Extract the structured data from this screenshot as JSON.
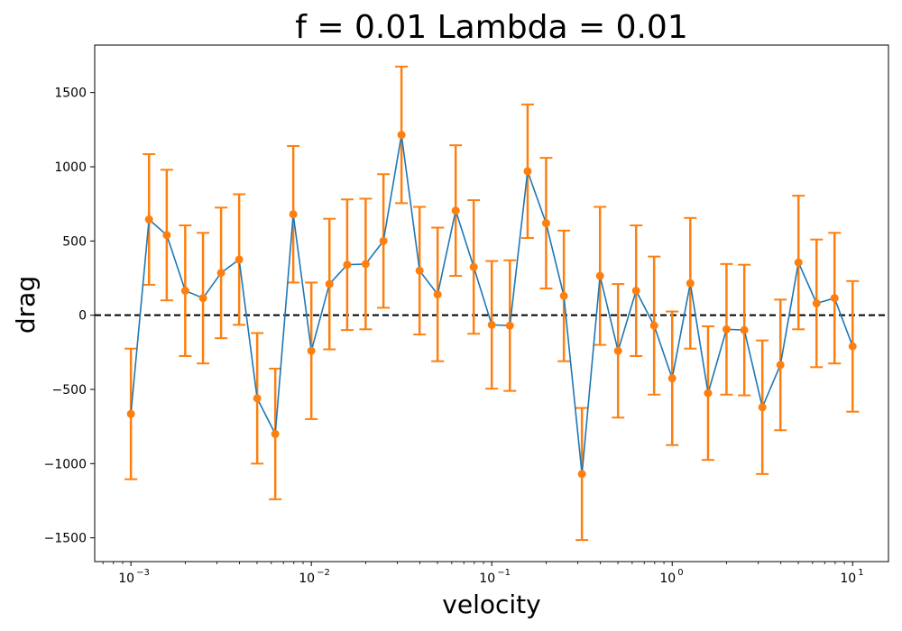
{
  "chart_data": {
    "type": "line",
    "title": "f = 0.01 Lambda = 0.01",
    "xlabel": "velocity",
    "ylabel": "drag",
    "xscale": "log",
    "xlim": [
      0.00063,
      15.8
    ],
    "ylim": [
      -1660,
      1820
    ],
    "y_ticks": [
      -1500,
      -1000,
      -500,
      0,
      500,
      1000,
      1500
    ],
    "x_ticks": [
      {
        "value": 0.001,
        "base": "10",
        "exp": "−3"
      },
      {
        "value": 0.01,
        "base": "10",
        "exp": "−2"
      },
      {
        "value": 0.1,
        "base": "10",
        "exp": "−1"
      },
      {
        "value": 1,
        "base": "10",
        "exp": "0"
      },
      {
        "value": 10,
        "base": "10",
        "exp": "1"
      }
    ],
    "reference_line": {
      "y": 0,
      "style": "dashed",
      "color": "#000000"
    },
    "colors": {
      "line": "#1f77b4",
      "points": "#ff7f0e",
      "errorbars": "#ff7f0e"
    },
    "grid": false,
    "series": [
      {
        "x": [
          0.001,
          0.00126,
          0.00158,
          0.002,
          0.00251,
          0.00316,
          0.00398,
          0.00501,
          0.00631,
          0.00794,
          0.01,
          0.0126,
          0.0158,
          0.02,
          0.0251,
          0.0316,
          0.0398,
          0.0501,
          0.0631,
          0.0794,
          0.1,
          0.126,
          0.158,
          0.2,
          0.251,
          0.316,
          0.398,
          0.501,
          0.631,
          0.794,
          1.0,
          1.26,
          1.58,
          2.0,
          2.51,
          3.16,
          3.98,
          5.01,
          6.31,
          7.94,
          10.0
        ],
        "y": [
          -665,
          645,
          540,
          165,
          115,
          285,
          375,
          -560,
          -800,
          680,
          -240,
          210,
          340,
          345,
          500,
          1215,
          300,
          140,
          705,
          325,
          -65,
          -70,
          970,
          620,
          130,
          -1070,
          265,
          -240,
          165,
          -70,
          -425,
          215,
          -525,
          -95,
          -100,
          -620,
          -335,
          355,
          80,
          115,
          -210
        ],
        "err": [
          440,
          440,
          440,
          440,
          440,
          440,
          440,
          440,
          440,
          460,
          460,
          440,
          440,
          440,
          450,
          460,
          430,
          450,
          440,
          450,
          430,
          440,
          450,
          440,
          440,
          445,
          465,
          450,
          440,
          465,
          450,
          440,
          450,
          440,
          440,
          450,
          440,
          450,
          430,
          440,
          440
        ]
      }
    ]
  }
}
